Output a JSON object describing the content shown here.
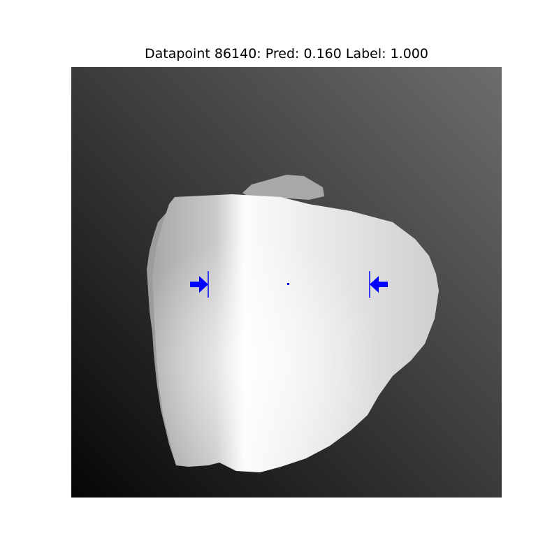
{
  "figure": {
    "title": "Datapoint 86140: Pred: 0.160 Label: 1.000"
  },
  "image": {
    "description_colors": {
      "background_dark": "#060606",
      "background_light": "#6d6d6d",
      "object_light": "#fafafa",
      "object_shadow": "#9c9c9c"
    }
  },
  "overlay": {
    "marker_color": "#0000ff",
    "left_arrow_icon": "arrow-right-icon",
    "right_arrow_icon": "arrow-left-icon",
    "center_marker_icon": "dot-icon"
  }
}
